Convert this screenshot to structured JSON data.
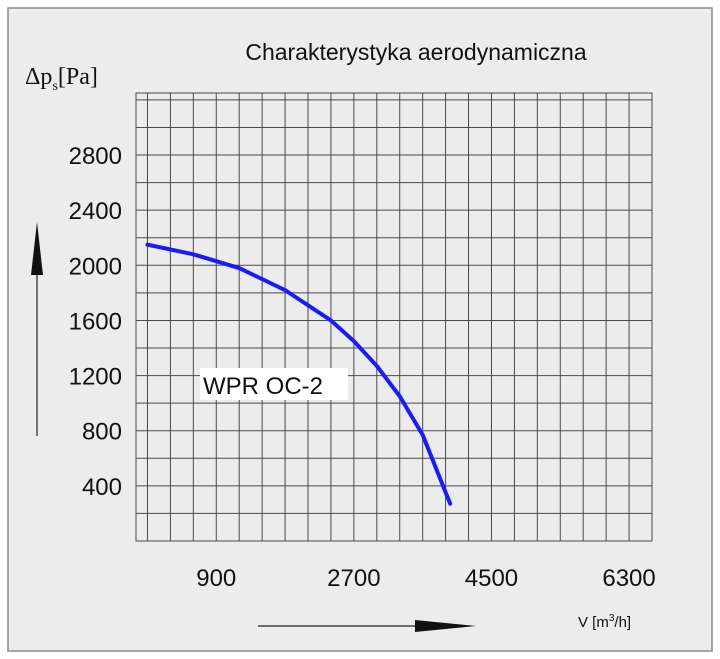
{
  "chart_data": {
    "type": "line",
    "title": "Charakterystyka aerodynamiczna",
    "ylabel": {
      "main": "Δp",
      "sub": "s",
      "unit": "[Pa]"
    },
    "xlabel": {
      "main": "V [m",
      "sup": "3",
      "unit": "/h]"
    },
    "x": [
      0,
      600,
      1200,
      1800,
      2400,
      2700,
      3000,
      3300,
      3600,
      3960
    ],
    "series": [
      {
        "name": "WPR OC-2",
        "color": "#1a1aff",
        "values": [
          2150,
          2080,
          1980,
          1820,
          1600,
          1450,
          1270,
          1050,
          770,
          270
        ]
      }
    ],
    "xlim": [
      -150,
      6600
    ],
    "ylim": [
      0,
      3250
    ],
    "xticks": [
      900,
      2700,
      4500,
      6300
    ],
    "yticks": [
      400,
      800,
      1200,
      1600,
      2000,
      2400,
      2800
    ],
    "xgrid": [
      0,
      300,
      600,
      900,
      1200,
      1500,
      1800,
      2100,
      2400,
      2700,
      3000,
      3300,
      3600,
      3900,
      4200,
      4500,
      4800,
      5100,
      5400,
      5700,
      6000,
      6300
    ],
    "ygrid": [
      200,
      400,
      600,
      800,
      1000,
      1200,
      1400,
      1600,
      1800,
      2000,
      2200,
      2400,
      2600,
      2800,
      3000,
      3200
    ],
    "grid": true
  }
}
